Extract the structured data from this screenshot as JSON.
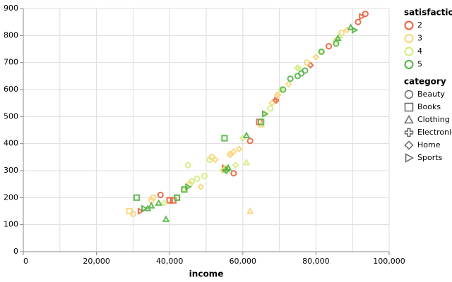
{
  "chart_data": {
    "type": "scatter",
    "x_label": "income",
    "xlim": [
      0,
      100000
    ],
    "ylim": [
      0,
      900
    ],
    "xticks": [
      {
        "value": 0,
        "label": "0"
      },
      {
        "value": 20000,
        "label": "20,000"
      },
      {
        "value": 40000,
        "label": "40,000"
      },
      {
        "value": 60000,
        "label": "60,000"
      },
      {
        "value": 80000,
        "label": "80,000"
      },
      {
        "value": 100000,
        "label": "100,000"
      }
    ],
    "xgrid": [
      0,
      10000,
      20000,
      30000,
      40000,
      50000,
      60000,
      70000,
      80000,
      90000,
      100000
    ],
    "yticks": [
      0,
      100,
      200,
      300,
      400,
      500,
      600,
      700,
      800,
      900
    ],
    "grid": true,
    "color_legend": {
      "title": "satisfaction",
      "levels": [
        2,
        3,
        4,
        5
      ],
      "colors": [
        "#e8603c",
        "#f9d479",
        "#d3ec7f",
        "#55b348"
      ]
    },
    "shape_legend": {
      "title": "category",
      "categories": [
        "Beauty",
        "Books",
        "Clothing",
        "Electronics",
        "Home",
        "Sports"
      ],
      "shapes": [
        "circle",
        "square",
        "triangle-up",
        "cross",
        "diamond",
        "triangle-right"
      ]
    },
    "points": [
      {
        "x": 32000,
        "y": 150,
        "satisfaction": 2,
        "category": "Sports"
      },
      {
        "x": 37500,
        "y": 210,
        "satisfaction": 2,
        "category": "Beauty"
      },
      {
        "x": 40000,
        "y": 190,
        "satisfaction": 2,
        "category": "Books"
      },
      {
        "x": 41000,
        "y": 190,
        "satisfaction": 2,
        "category": "Books"
      },
      {
        "x": 55000,
        "y": 310,
        "satisfaction": 2,
        "category": "Sports"
      },
      {
        "x": 57500,
        "y": 290,
        "satisfaction": 2,
        "category": "Beauty"
      },
      {
        "x": 62000,
        "y": 410,
        "satisfaction": 2,
        "category": "Beauty"
      },
      {
        "x": 64500,
        "y": 480,
        "satisfaction": 2,
        "category": "Books"
      },
      {
        "x": 69000,
        "y": 560,
        "satisfaction": 2,
        "category": "Electronics"
      },
      {
        "x": 78500,
        "y": 690,
        "satisfaction": 2,
        "category": "Home"
      },
      {
        "x": 83500,
        "y": 760,
        "satisfaction": 2,
        "category": "Beauty"
      },
      {
        "x": 91500,
        "y": 850,
        "satisfaction": 2,
        "category": "Beauty"
      },
      {
        "x": 92500,
        "y": 870,
        "satisfaction": 2,
        "category": "Sports"
      },
      {
        "x": 93500,
        "y": 880,
        "satisfaction": 2,
        "category": "Beauty"
      },
      {
        "x": 29000,
        "y": 150,
        "satisfaction": 3,
        "category": "Books"
      },
      {
        "x": 30000,
        "y": 140,
        "satisfaction": 3,
        "category": "Beauty"
      },
      {
        "x": 35000,
        "y": 190,
        "satisfaction": 3,
        "category": "Beauty"
      },
      {
        "x": 35500,
        "y": 200,
        "satisfaction": 3,
        "category": "Beauty"
      },
      {
        "x": 45500,
        "y": 250,
        "satisfaction": 3,
        "category": "Beauty"
      },
      {
        "x": 48500,
        "y": 240,
        "satisfaction": 3,
        "category": "Home"
      },
      {
        "x": 51500,
        "y": 350,
        "satisfaction": 3,
        "category": "Beauty"
      },
      {
        "x": 52500,
        "y": 340,
        "satisfaction": 3,
        "category": "Home"
      },
      {
        "x": 56500,
        "y": 360,
        "satisfaction": 3,
        "category": "Electronics"
      },
      {
        "x": 57500,
        "y": 370,
        "satisfaction": 3,
        "category": "Home"
      },
      {
        "x": 59000,
        "y": 380,
        "satisfaction": 3,
        "category": "Home"
      },
      {
        "x": 62000,
        "y": 150,
        "satisfaction": 3,
        "category": "Clothing"
      },
      {
        "x": 65000,
        "y": 470,
        "satisfaction": 3,
        "category": "Clothing"
      },
      {
        "x": 68000,
        "y": 550,
        "satisfaction": 3,
        "category": "Home"
      },
      {
        "x": 69500,
        "y": 580,
        "satisfaction": 3,
        "category": "Electronics"
      },
      {
        "x": 72500,
        "y": 620,
        "satisfaction": 3,
        "category": "Home"
      },
      {
        "x": 77500,
        "y": 700,
        "satisfaction": 3,
        "category": "Beauty"
      },
      {
        "x": 80000,
        "y": 720,
        "satisfaction": 3,
        "category": "Home"
      },
      {
        "x": 87000,
        "y": 810,
        "satisfaction": 3,
        "category": "Beauty"
      },
      {
        "x": 88500,
        "y": 820,
        "satisfaction": 3,
        "category": "Home"
      },
      {
        "x": 38500,
        "y": 180,
        "satisfaction": 4,
        "category": "Home"
      },
      {
        "x": 42000,
        "y": 200,
        "satisfaction": 4,
        "category": "Beauty"
      },
      {
        "x": 44000,
        "y": 230,
        "satisfaction": 4,
        "category": "Home"
      },
      {
        "x": 45000,
        "y": 320,
        "satisfaction": 4,
        "category": "Beauty"
      },
      {
        "x": 46000,
        "y": 260,
        "satisfaction": 4,
        "category": "Beauty"
      },
      {
        "x": 47500,
        "y": 270,
        "satisfaction": 4,
        "category": "Beauty"
      },
      {
        "x": 49500,
        "y": 280,
        "satisfaction": 4,
        "category": "Beauty"
      },
      {
        "x": 51000,
        "y": 340,
        "satisfaction": 4,
        "category": "Beauty"
      },
      {
        "x": 54500,
        "y": 300,
        "satisfaction": 4,
        "category": "Home"
      },
      {
        "x": 55500,
        "y": 310,
        "satisfaction": 4,
        "category": "Beauty"
      },
      {
        "x": 58000,
        "y": 320,
        "satisfaction": 4,
        "category": "Home"
      },
      {
        "x": 60000,
        "y": 420,
        "satisfaction": 4,
        "category": "Home"
      },
      {
        "x": 61000,
        "y": 330,
        "satisfaction": 4,
        "category": "Clothing"
      },
      {
        "x": 66000,
        "y": 510,
        "satisfaction": 4,
        "category": "Home"
      },
      {
        "x": 67500,
        "y": 530,
        "satisfaction": 4,
        "category": "Beauty"
      },
      {
        "x": 70500,
        "y": 600,
        "satisfaction": 4,
        "category": "Home"
      },
      {
        "x": 75000,
        "y": 680,
        "satisfaction": 4,
        "category": "Electronics"
      },
      {
        "x": 81500,
        "y": 740,
        "satisfaction": 4,
        "category": "Home"
      },
      {
        "x": 85500,
        "y": 780,
        "satisfaction": 4,
        "category": "Beauty"
      },
      {
        "x": 86500,
        "y": 800,
        "satisfaction": 4,
        "category": "Clothing"
      },
      {
        "x": 31000,
        "y": 200,
        "satisfaction": 5,
        "category": "Books"
      },
      {
        "x": 33000,
        "y": 160,
        "satisfaction": 5,
        "category": "Sports"
      },
      {
        "x": 34000,
        "y": 160,
        "satisfaction": 5,
        "category": "Clothing"
      },
      {
        "x": 35000,
        "y": 170,
        "satisfaction": 5,
        "category": "Clothing"
      },
      {
        "x": 37000,
        "y": 180,
        "satisfaction": 5,
        "category": "Clothing"
      },
      {
        "x": 39000,
        "y": 120,
        "satisfaction": 5,
        "category": "Clothing"
      },
      {
        "x": 42000,
        "y": 200,
        "satisfaction": 5,
        "category": "Books"
      },
      {
        "x": 44000,
        "y": 230,
        "satisfaction": 5,
        "category": "Books"
      },
      {
        "x": 45000,
        "y": 240,
        "satisfaction": 5,
        "category": "Sports"
      },
      {
        "x": 55000,
        "y": 420,
        "satisfaction": 5,
        "category": "Books"
      },
      {
        "x": 55500,
        "y": 300,
        "satisfaction": 5,
        "category": "Electronics"
      },
      {
        "x": 56000,
        "y": 310,
        "satisfaction": 5,
        "category": "Clothing"
      },
      {
        "x": 61000,
        "y": 430,
        "satisfaction": 5,
        "category": "Clothing"
      },
      {
        "x": 65000,
        "y": 480,
        "satisfaction": 5,
        "category": "Books"
      },
      {
        "x": 66000,
        "y": 510,
        "satisfaction": 5,
        "category": "Sports"
      },
      {
        "x": 71000,
        "y": 600,
        "satisfaction": 5,
        "category": "Beauty"
      },
      {
        "x": 73000,
        "y": 640,
        "satisfaction": 5,
        "category": "Beauty"
      },
      {
        "x": 75000,
        "y": 650,
        "satisfaction": 5,
        "category": "Beauty"
      },
      {
        "x": 76000,
        "y": 660,
        "satisfaction": 5,
        "category": "Beauty"
      },
      {
        "x": 77000,
        "y": 670,
        "satisfaction": 5,
        "category": "Beauty"
      },
      {
        "x": 81500,
        "y": 740,
        "satisfaction": 5,
        "category": "Beauty"
      },
      {
        "x": 85500,
        "y": 770,
        "satisfaction": 5,
        "category": "Beauty"
      },
      {
        "x": 86000,
        "y": 790,
        "satisfaction": 5,
        "category": "Clothing"
      },
      {
        "x": 89500,
        "y": 830,
        "satisfaction": 5,
        "category": "Clothing"
      },
      {
        "x": 90500,
        "y": 820,
        "satisfaction": 5,
        "category": "Sports"
      }
    ]
  }
}
